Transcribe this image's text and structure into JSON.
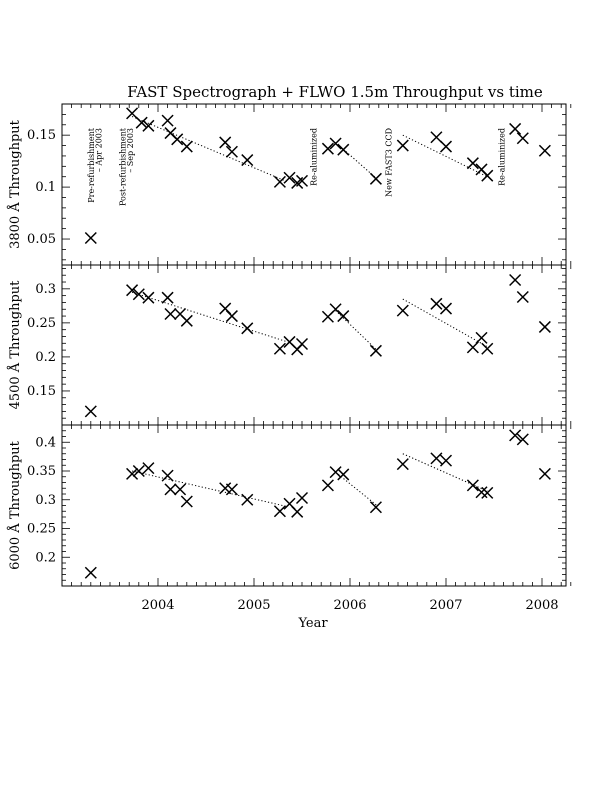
{
  "title": "FAST Spectrograph + FLWO 1.5m Throughput vs time",
  "xlabel": "Year",
  "x_ticks": [
    "2004",
    "2005",
    "2006",
    "2007",
    "2008"
  ],
  "annotations": [
    {
      "date": 2003.3,
      "text": "Pre-refurbishment"
    },
    {
      "date": 2003.38,
      "text": "– Apr 2003"
    },
    {
      "date": 2003.63,
      "text": "Post-refurbishment"
    },
    {
      "date": 2003.71,
      "text": "– Sep 2003"
    },
    {
      "date": 2005.62,
      "text": "Re-aluminized"
    },
    {
      "date": 2006.4,
      "text": "New FAST3 CCD"
    },
    {
      "date": 2007.58,
      "text": "Re-aluminized"
    }
  ],
  "chart_data": [
    {
      "type": "scatter",
      "ylabel": "3800 Å Throughput",
      "xlim": [
        2003.0,
        2008.25
      ],
      "ylim": [
        0.025,
        0.18
      ],
      "yticks": [
        0.05,
        0.1,
        0.15
      ],
      "yticks_labels": [
        "0.05",
        "0.1",
        "0.15"
      ],
      "points": [
        [
          2003.3,
          0.051
        ],
        [
          2003.73,
          0.171
        ],
        [
          2003.83,
          0.162
        ],
        [
          2003.9,
          0.159
        ],
        [
          2004.1,
          0.164
        ],
        [
          2004.13,
          0.152
        ],
        [
          2004.2,
          0.146
        ],
        [
          2004.3,
          0.139
        ],
        [
          2004.7,
          0.143
        ],
        [
          2004.77,
          0.134
        ],
        [
          2004.93,
          0.126
        ],
        [
          2005.27,
          0.105
        ],
        [
          2005.37,
          0.109
        ],
        [
          2005.45,
          0.104
        ],
        [
          2005.5,
          0.106
        ],
        [
          2005.77,
          0.137
        ],
        [
          2005.85,
          0.142
        ],
        [
          2005.93,
          0.136
        ],
        [
          2006.27,
          0.108
        ],
        [
          2006.55,
          0.14
        ],
        [
          2006.9,
          0.148
        ],
        [
          2007.0,
          0.139
        ],
        [
          2007.28,
          0.123
        ],
        [
          2007.37,
          0.117
        ],
        [
          2007.43,
          0.111
        ],
        [
          2007.72,
          0.156
        ],
        [
          2007.8,
          0.147
        ],
        [
          2008.03,
          0.135
        ]
      ],
      "trend_lines": [
        [
          [
            2003.73,
            0.168
          ],
          [
            2005.35,
            0.105
          ]
        ],
        [
          [
            2005.85,
            0.143
          ],
          [
            2006.28,
            0.108
          ]
        ],
        [
          [
            2006.55,
            0.15
          ],
          [
            2007.43,
            0.11
          ]
        ]
      ]
    },
    {
      "type": "scatter",
      "ylabel": "4500 Å Throughput",
      "xlim": [
        2003.0,
        2008.25
      ],
      "ylim": [
        0.1,
        0.335
      ],
      "yticks": [
        0.15,
        0.2,
        0.25,
        0.3
      ],
      "yticks_labels": [
        "0.15",
        "0.2",
        "0.25",
        "0.3"
      ],
      "points": [
        [
          2003.3,
          0.12
        ],
        [
          2003.73,
          0.298
        ],
        [
          2003.8,
          0.292
        ],
        [
          2003.9,
          0.287
        ],
        [
          2004.1,
          0.287
        ],
        [
          2004.13,
          0.263
        ],
        [
          2004.23,
          0.263
        ],
        [
          2004.3,
          0.253
        ],
        [
          2004.7,
          0.271
        ],
        [
          2004.77,
          0.26
        ],
        [
          2004.93,
          0.242
        ],
        [
          2005.27,
          0.212
        ],
        [
          2005.37,
          0.222
        ],
        [
          2005.45,
          0.211
        ],
        [
          2005.5,
          0.219
        ],
        [
          2005.77,
          0.259
        ],
        [
          2005.85,
          0.27
        ],
        [
          2005.93,
          0.26
        ],
        [
          2006.27,
          0.209
        ],
        [
          2006.55,
          0.268
        ],
        [
          2006.9,
          0.278
        ],
        [
          2007.0,
          0.271
        ],
        [
          2007.28,
          0.214
        ],
        [
          2007.37,
          0.228
        ],
        [
          2007.43,
          0.212
        ],
        [
          2007.72,
          0.313
        ],
        [
          2007.8,
          0.288
        ],
        [
          2008.03,
          0.244
        ]
      ],
      "trend_lines": [
        [
          [
            2003.73,
            0.295
          ],
          [
            2005.35,
            0.222
          ]
        ],
        [
          [
            2005.85,
            0.268
          ],
          [
            2006.28,
            0.21
          ]
        ],
        [
          [
            2006.55,
            0.285
          ],
          [
            2007.43,
            0.215
          ]
        ]
      ]
    },
    {
      "type": "scatter",
      "ylabel": "6000 Å Throughput",
      "xlim": [
        2003.0,
        2008.25
      ],
      "ylim": [
        0.15,
        0.43
      ],
      "yticks": [
        0.2,
        0.25,
        0.3,
        0.35,
        0.4
      ],
      "yticks_labels": [
        "0.2",
        "0.25",
        "0.3",
        "0.35",
        "0.4"
      ],
      "points": [
        [
          2003.3,
          0.173
        ],
        [
          2003.73,
          0.345
        ],
        [
          2003.8,
          0.35
        ],
        [
          2003.9,
          0.355
        ],
        [
          2004.1,
          0.342
        ],
        [
          2004.13,
          0.318
        ],
        [
          2004.23,
          0.318
        ],
        [
          2004.3,
          0.297
        ],
        [
          2004.7,
          0.32
        ],
        [
          2004.77,
          0.318
        ],
        [
          2004.93,
          0.3
        ],
        [
          2005.27,
          0.28
        ],
        [
          2005.37,
          0.293
        ],
        [
          2005.45,
          0.279
        ],
        [
          2005.5,
          0.303
        ],
        [
          2005.77,
          0.325
        ],
        [
          2005.85,
          0.348
        ],
        [
          2005.93,
          0.344
        ],
        [
          2006.27,
          0.287
        ],
        [
          2006.55,
          0.362
        ],
        [
          2006.9,
          0.372
        ],
        [
          2007.0,
          0.368
        ],
        [
          2007.28,
          0.325
        ],
        [
          2007.37,
          0.313
        ],
        [
          2007.43,
          0.312
        ],
        [
          2007.72,
          0.412
        ],
        [
          2007.8,
          0.405
        ],
        [
          2008.03,
          0.345
        ]
      ],
      "trend_lines": [
        [
          [
            2003.73,
            0.35
          ],
          [
            2005.35,
            0.288
          ]
        ],
        [
          [
            2005.85,
            0.348
          ],
          [
            2006.28,
            0.29
          ]
        ],
        [
          [
            2006.55,
            0.38
          ],
          [
            2007.43,
            0.315
          ]
        ]
      ]
    }
  ]
}
